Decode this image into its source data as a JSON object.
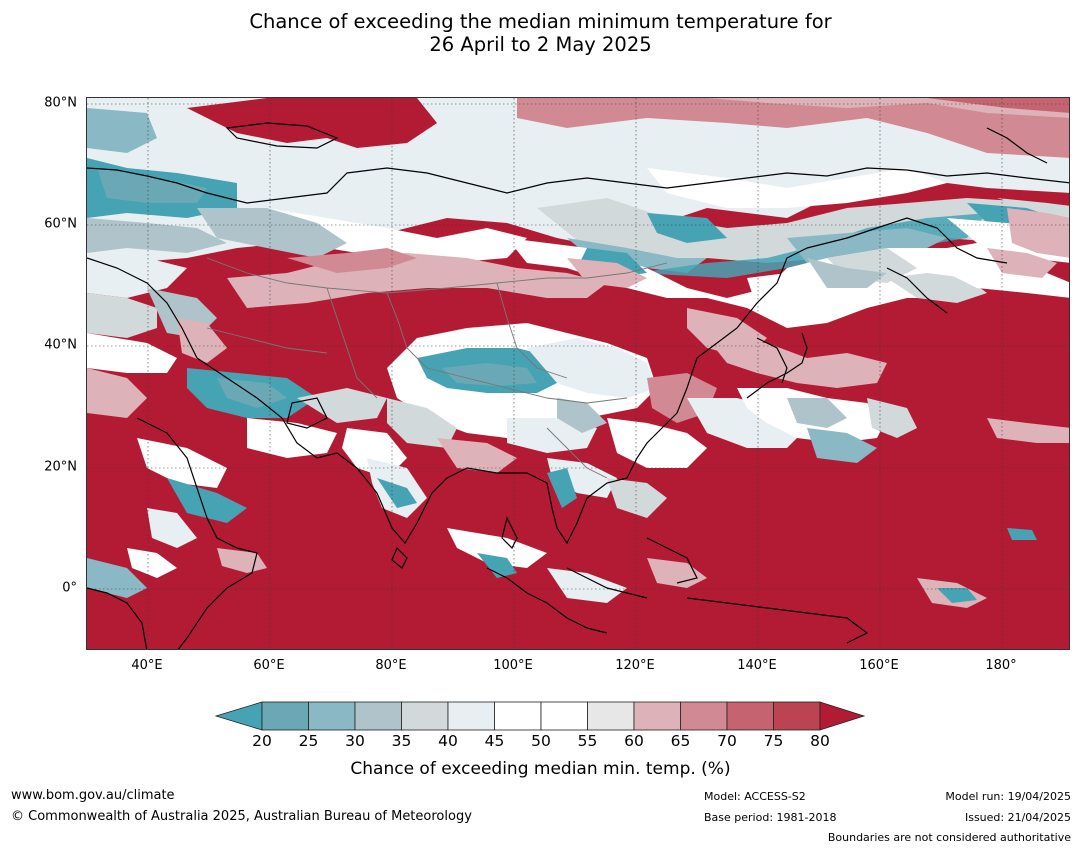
{
  "title": {
    "line1": "Chance of exceeding the median minimum temperature for",
    "line2": "26 April to 2 May 2025"
  },
  "map": {
    "lat_labels": [
      "80°N",
      "60°N",
      "40°N",
      "20°N",
      "0°"
    ],
    "lon_labels": [
      "40°E",
      "60°E",
      "80°E",
      "100°E",
      "120°E",
      "140°E",
      "160°E",
      "180°"
    ]
  },
  "colorbar": {
    "ticks": [
      "20",
      "25",
      "30",
      "35",
      "40",
      "45",
      "50",
      "55",
      "60",
      "65",
      "70",
      "75",
      "80"
    ],
    "label": "Chance of exceeding median min. temp. (%)",
    "colors": {
      "below_20": "#46a3b4",
      "20_25": "#6ba8b6",
      "25_30": "#8ab8c4",
      "30_35": "#aec4ca",
      "35_40": "#d2d9db",
      "40_45": "#e8eff2",
      "45_50": "#ffffff",
      "50_55": "#ffffff",
      "55_60": "#e7e7e8",
      "60_65": "#ddb3b9",
      "65_70": "#d18a94",
      "70_75": "#c56470",
      "75_80": "#bc4452",
      "above_80": "#b31b34"
    }
  },
  "footer": {
    "website": "www.bom.gov.au/climate",
    "copyright": "© Commonwealth of Australia 2025, Australian Bureau of Meteorology",
    "model": "Model: ACCESS-S2",
    "base_period": "Base period: 1981-2018",
    "model_run": "Model run: 19/04/2025",
    "issued": "Issued: 21/04/2025",
    "disclaimer": "Boundaries are not considered authoritative"
  }
}
